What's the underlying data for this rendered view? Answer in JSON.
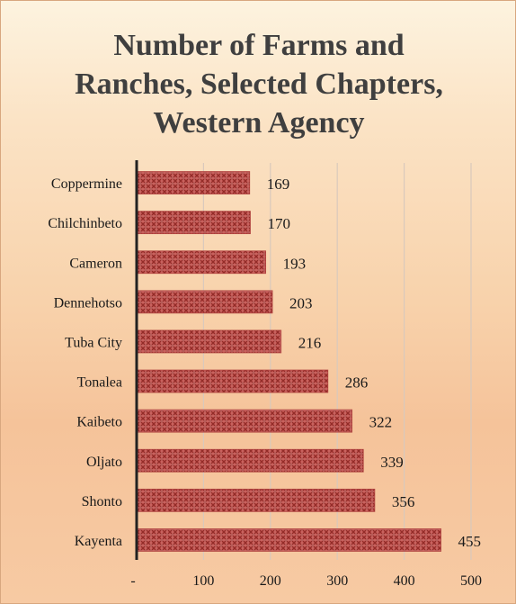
{
  "colors": {
    "bar": "#c0504d",
    "bar_pattern": "#8f2a26",
    "axis": "#222222",
    "grid": "#d9c9bc"
  },
  "chart_data": {
    "type": "bar",
    "orientation": "horizontal",
    "title_lines": [
      "Number of Farms and",
      "Ranches, Selected Chapters,",
      "Western Agency"
    ],
    "categories": [
      "Coppermine",
      "Chilchinbeto",
      "Cameron",
      "Dennehotso",
      "Tuba City",
      "Tonalea",
      "Kaibeto",
      "Oljato",
      "Shonto",
      "Kayenta"
    ],
    "values": [
      169,
      170,
      193,
      203,
      216,
      286,
      322,
      339,
      356,
      455
    ],
    "data_labels": [
      "169",
      "170",
      "193",
      "203",
      "216",
      "286",
      "322",
      "339",
      "356",
      "455"
    ],
    "xlim": [
      0,
      500
    ],
    "x_ticks": [
      0,
      100,
      200,
      300,
      400,
      500
    ],
    "x_tick_labels": [
      "-",
      "100",
      "200",
      "300",
      "400",
      "500"
    ],
    "xlabel": "",
    "ylabel": "",
    "grid": true
  }
}
